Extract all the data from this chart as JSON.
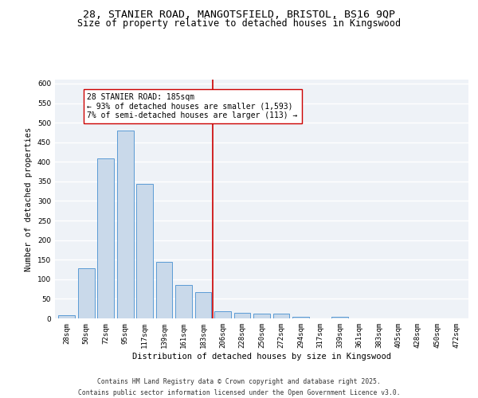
{
  "title_line1": "28, STANIER ROAD, MANGOTSFIELD, BRISTOL, BS16 9QP",
  "title_line2": "Size of property relative to detached houses in Kingswood",
  "xlabel": "Distribution of detached houses by size in Kingswood",
  "ylabel": "Number of detached properties",
  "bar_color": "#c9d9ea",
  "bar_edge_color": "#5b9bd5",
  "categories": [
    "28sqm",
    "50sqm",
    "72sqm",
    "95sqm",
    "117sqm",
    "139sqm",
    "161sqm",
    "183sqm",
    "206sqm",
    "228sqm",
    "250sqm",
    "272sqm",
    "294sqm",
    "317sqm",
    "339sqm",
    "361sqm",
    "383sqm",
    "405sqm",
    "428sqm",
    "450sqm",
    "472sqm"
  ],
  "values": [
    8,
    128,
    408,
    480,
    343,
    145,
    85,
    68,
    18,
    14,
    12,
    12,
    5,
    0,
    4,
    0,
    0,
    0,
    0,
    0,
    1
  ],
  "vline_x": 7.5,
  "vline_color": "#cc0000",
  "annotation_text": "28 STANIER ROAD: 185sqm\n← 93% of detached houses are smaller (1,593)\n7% of semi-detached houses are larger (113) →",
  "ylim": [
    0,
    610
  ],
  "yticks": [
    0,
    50,
    100,
    150,
    200,
    250,
    300,
    350,
    400,
    450,
    500,
    550,
    600
  ],
  "background_color": "#eef2f7",
  "grid_color": "#ffffff",
  "footer": "Contains HM Land Registry data © Crown copyright and database right 2025.\nContains public sector information licensed under the Open Government Licence v3.0.",
  "title_fontsize": 9.5,
  "subtitle_fontsize": 8.5,
  "axis_label_fontsize": 7.5,
  "tick_fontsize": 6.5,
  "annotation_fontsize": 7,
  "footer_fontsize": 5.8
}
